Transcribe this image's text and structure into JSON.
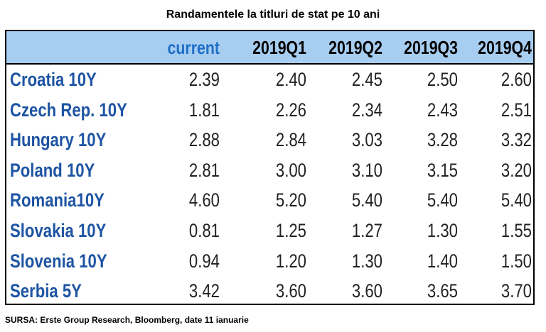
{
  "chart_data": {
    "type": "table",
    "title": "Randamentele la titluri de stat pe 10 ani",
    "columns": [
      "current",
      "2019Q1",
      "2019Q2",
      "2019Q3",
      "2019Q4"
    ],
    "rows": [
      {
        "label": "Croatia 10Y",
        "values": [
          "2.39",
          "2.40",
          "2.45",
          "2.50",
          "2.60"
        ]
      },
      {
        "label": "Czech Rep. 10Y",
        "values": [
          "1.81",
          "2.26",
          "2.34",
          "2.43",
          "2.51"
        ]
      },
      {
        "label": "Hungary 10Y",
        "values": [
          "2.88",
          "2.84",
          "3.03",
          "3.28",
          "3.32"
        ]
      },
      {
        "label": "Poland 10Y",
        "values": [
          "2.81",
          "3.00",
          "3.10",
          "3.15",
          "3.20"
        ]
      },
      {
        "label": "Romania10Y",
        "values": [
          "4.60",
          "5.20",
          "5.40",
          "5.40",
          "5.40"
        ]
      },
      {
        "label": "Slovakia 10Y",
        "values": [
          "0.81",
          "1.25",
          "1.27",
          "1.30",
          "1.55"
        ]
      },
      {
        "label": "Slovenia 10Y",
        "values": [
          "0.94",
          "1.20",
          "1.30",
          "1.40",
          "1.50"
        ]
      },
      {
        "label": "Serbia 5Y",
        "values": [
          "3.42",
          "3.60",
          "3.60",
          "3.65",
          "3.70"
        ]
      }
    ],
    "source": "SURSA: Erste Group Research, Bloomberg, date 11 ianuarie"
  },
  "colors": {
    "header_bg": "#a7cdf1",
    "current_header": "#1e6fc7",
    "row_label": "#1e54a3",
    "value_text": "#222222"
  }
}
